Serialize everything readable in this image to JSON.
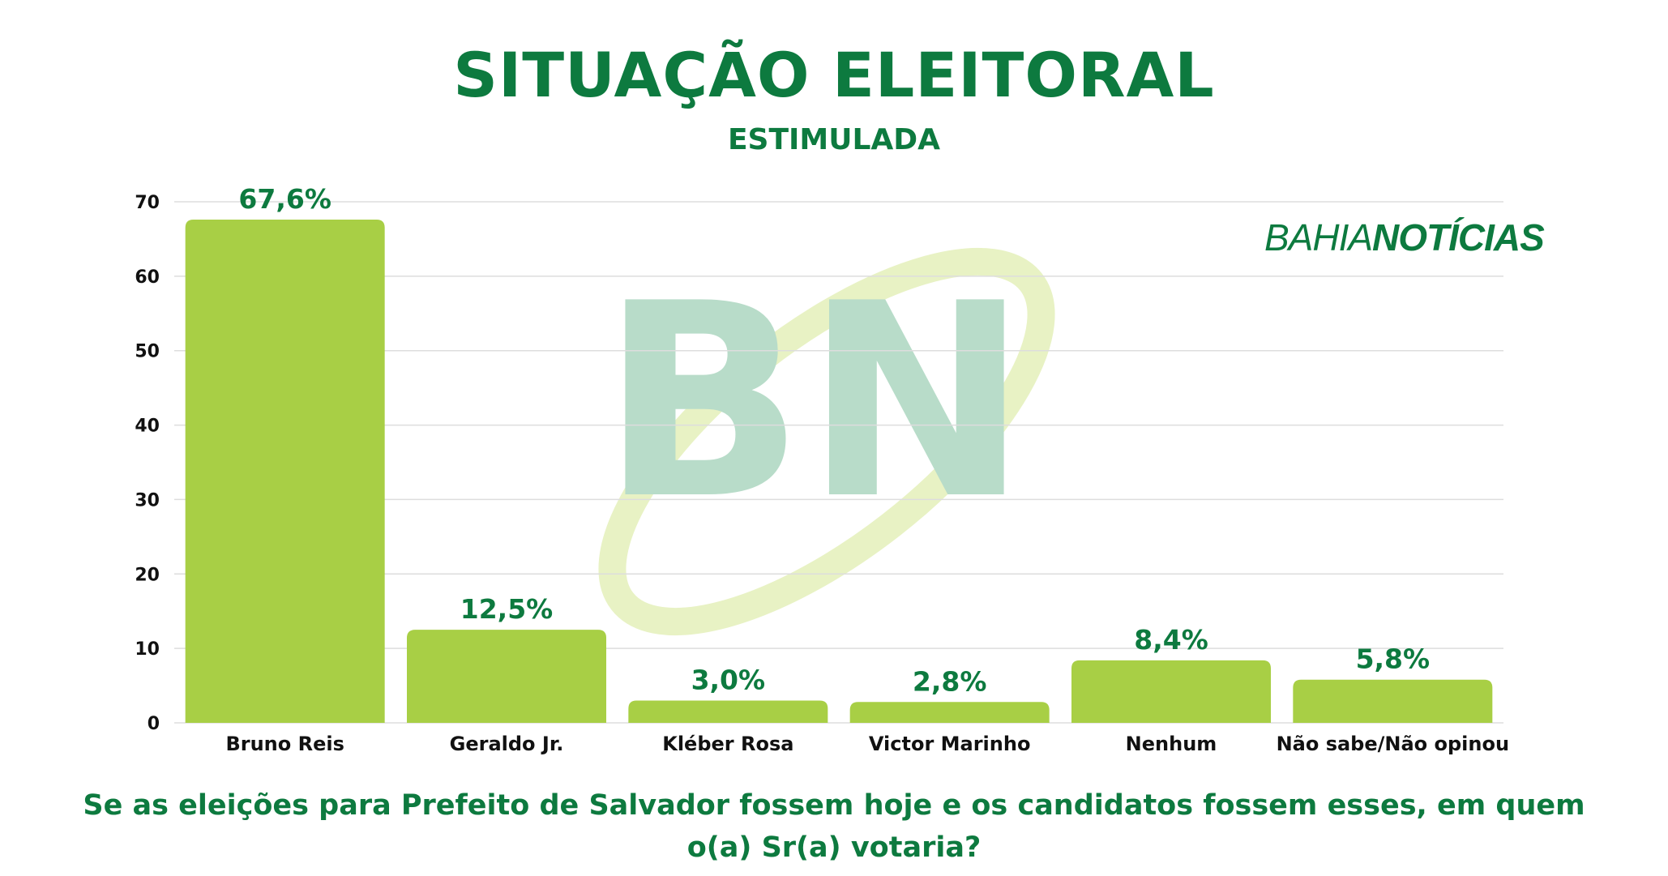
{
  "header": {
    "title": "SITUAÇÃO ELEITORAL",
    "subtitle": "ESTIMULADA"
  },
  "brand": {
    "light": "BAHIA",
    "heavy": "NOTÍCIAS"
  },
  "question": "Se as eleições para Prefeito de Salvador fossem hoje e os candidatos fossem esses, em quem o(a) Sr(a) votaria?",
  "colors": {
    "bar": "#a8cf45",
    "title": "#0d7a3f",
    "grid": "#dddddd",
    "watermark_letters": "#b8dcc9",
    "watermark_swoosh": "#e8f2c4"
  },
  "chart_data": {
    "type": "bar",
    "categories": [
      "Bruno Reis",
      "Geraldo Jr.",
      "Kléber Rosa",
      "Victor Marinho",
      "Nenhum",
      "Não sabe/Não opinou"
    ],
    "values": [
      67.6,
      12.5,
      3.0,
      2.8,
      8.4,
      5.8
    ],
    "value_labels": [
      "67,6%",
      "12,5%",
      "3,0%",
      "2,8%",
      "8,4%",
      "5,8%"
    ],
    "yticks": [
      0,
      10,
      20,
      30,
      40,
      50,
      60,
      70
    ],
    "ylim": [
      0,
      70
    ],
    "grid": true,
    "legend": "none"
  }
}
